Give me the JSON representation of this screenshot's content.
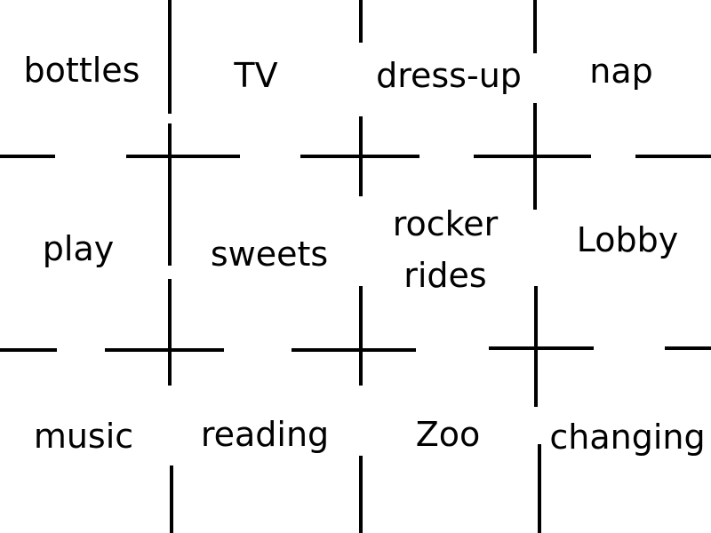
{
  "cards": [
    "bottles",
    "TV",
    "dress-up",
    "nap",
    "play",
    "sweets",
    "rocker rides",
    "Lobby",
    "music",
    "reading",
    "Zoo",
    "changing"
  ]
}
